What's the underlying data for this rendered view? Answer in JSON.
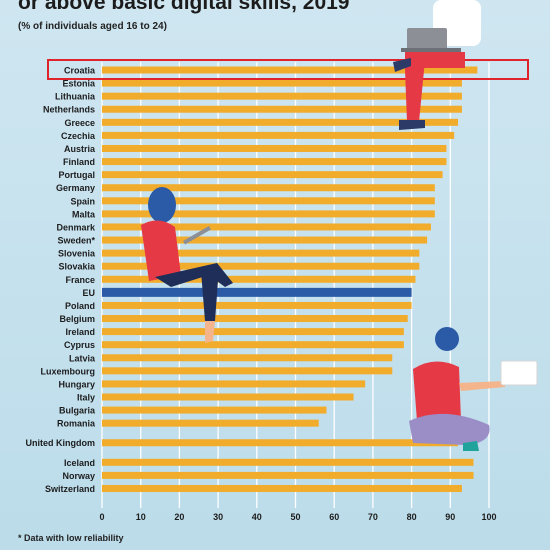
{
  "title": "or above basic digital skills, 2019",
  "subtitle": "(% of individuals aged 16 to 24)",
  "footnote": "* Data with low reliability",
  "colors": {
    "bar": "#f2ac2b",
    "eu_bar": "#2b5aa6",
    "highlight": "#e0242b",
    "grid": "#ffffff",
    "background": "#c8e2ee"
  },
  "chart_data": {
    "type": "bar",
    "orientation": "horizontal",
    "title": "or above basic digital skills, 2019",
    "subtitle": "(% of individuals aged 16 to 24)",
    "xlim": [
      0,
      100
    ],
    "xticks": [
      0,
      10,
      20,
      30,
      40,
      50,
      60,
      70,
      80,
      90,
      100
    ],
    "grid": true,
    "highlighted": "Croatia",
    "categories": [
      "Croatia",
      "Estonia",
      "Lithuania",
      "Netherlands",
      "Greece",
      "Czechia",
      "Austria",
      "Finland",
      "Portugal",
      "Germany",
      "Spain",
      "Malta",
      "Denmark",
      "Sweden*",
      "Slovenia",
      "Slovakia",
      "France",
      "EU",
      "Poland",
      "Belgium",
      "Ireland",
      "Cyprus",
      "Latvia",
      "Luxembourg",
      "Hungary",
      "Italy",
      "Bulgaria",
      "Romania",
      "United Kingdom",
      "Iceland",
      "Norway",
      "Switzerland"
    ],
    "values": [
      97,
      93,
      93,
      93,
      92,
      91,
      89,
      89,
      88,
      86,
      86,
      86,
      85,
      84,
      82,
      82,
      81,
      80,
      80,
      79,
      78,
      78,
      75,
      75,
      68,
      65,
      58,
      56,
      92,
      96,
      96,
      93
    ]
  }
}
